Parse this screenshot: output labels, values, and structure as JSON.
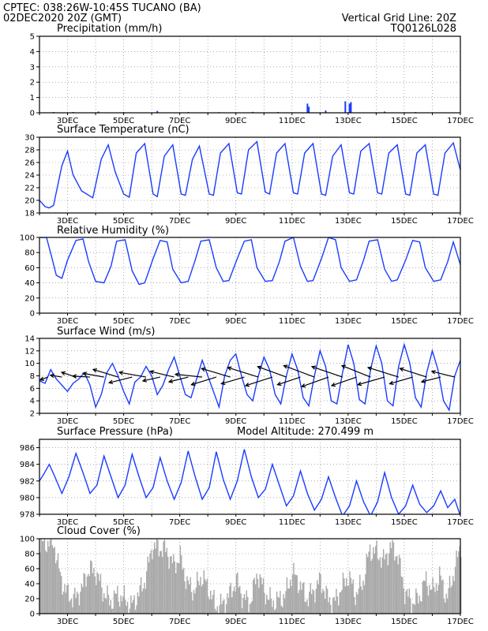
{
  "header": {
    "line1": "CPTEC:   038:26W-10:45S   TUCANO (BA)",
    "line2": "02DEC2020 20Z (GMT)",
    "right1": "Vertical Grid Line: 20Z",
    "right2": "TQ0126L028"
  },
  "colors": {
    "header": "#e07020",
    "title": "#e0207a",
    "line": "#1a3cff",
    "bar": "#a9a9a9",
    "wind": "#000000"
  },
  "xticks": [
    "3DEC",
    "5DEC",
    "7DEC",
    "9DEC",
    "11DEC",
    "13DEC",
    "15DEC",
    "17DEC"
  ],
  "chart_data": [
    {
      "type": "bar",
      "title": "Precipitation (mm/h)",
      "ylim": [
        0,
        5
      ],
      "yticks": [
        0,
        1,
        2,
        3,
        4,
        5
      ],
      "x_range_days": [
        2.0,
        17.0
      ],
      "series": [
        {
          "x": [
            2.5,
            3.2,
            4.1,
            5.0,
            6.2,
            7.3,
            8.4,
            9.6,
            10.5,
            11.55,
            11.6,
            12.2,
            12.9,
            13.05,
            13.1,
            14.3,
            15.4
          ],
          "values": [
            0.05,
            0.05,
            0.08,
            0.04,
            0.12,
            0.05,
            0.04,
            0.06,
            0.05,
            0.6,
            0.4,
            0.15,
            0.75,
            0.6,
            0.7,
            0.08,
            0.05
          ]
        }
      ]
    },
    {
      "type": "line",
      "title": "Surface Temperature (nC)",
      "ylim": [
        18,
        30
      ],
      "yticks": [
        18,
        20,
        22,
        24,
        26,
        28,
        30
      ],
      "x_range_days": [
        2.0,
        17.0
      ],
      "series": [
        {
          "x": [
            2.0,
            2.2,
            2.35,
            2.5,
            2.8,
            3.0,
            3.2,
            3.5,
            3.9,
            4.2,
            4.45,
            4.7,
            5.0,
            5.2,
            5.45,
            5.75,
            6.05,
            6.2,
            6.45,
            6.75,
            7.05,
            7.2,
            7.45,
            7.7,
            8.05,
            8.2,
            8.45,
            8.75,
            9.05,
            9.2,
            9.45,
            9.75,
            10.05,
            10.2,
            10.45,
            10.75,
            11.05,
            11.2,
            11.45,
            11.75,
            12.05,
            12.2,
            12.45,
            12.75,
            13.05,
            13.2,
            13.45,
            13.75,
            14.05,
            14.2,
            14.45,
            14.75,
            15.05,
            15.2,
            15.45,
            15.75,
            16.05,
            16.2,
            16.45,
            16.75,
            17.0
          ],
          "values": [
            20.0,
            19.0,
            18.8,
            19.2,
            25.5,
            27.8,
            24.0,
            21.5,
            20.4,
            26.5,
            28.8,
            24.5,
            21.0,
            20.5,
            27.5,
            29.0,
            21.0,
            20.6,
            27.0,
            28.8,
            21.0,
            20.8,
            26.5,
            28.6,
            21.0,
            20.8,
            27.5,
            29.0,
            21.2,
            21.0,
            28.0,
            29.3,
            21.3,
            21.0,
            27.5,
            29.0,
            21.2,
            21.0,
            27.5,
            29.0,
            21.0,
            20.8,
            27.0,
            28.8,
            21.2,
            21.0,
            27.8,
            29.0,
            21.2,
            21.0,
            27.5,
            28.8,
            21.0,
            20.8,
            27.5,
            28.8,
            21.0,
            20.8,
            27.5,
            29.1,
            24.8
          ]
        }
      ]
    },
    {
      "type": "line",
      "title": "Relative Humidity (%)",
      "ylim": [
        0,
        100
      ],
      "yticks": [
        0,
        20,
        40,
        60,
        80,
        100
      ],
      "x_range_days": [
        2.0,
        17.0
      ],
      "series": [
        {
          "x": [
            2.0,
            2.25,
            2.45,
            2.6,
            2.8,
            3.0,
            3.3,
            3.55,
            3.75,
            4.0,
            4.3,
            4.55,
            4.75,
            5.05,
            5.3,
            5.55,
            5.75,
            6.05,
            6.3,
            6.55,
            6.75,
            7.05,
            7.3,
            7.55,
            7.75,
            8.05,
            8.3,
            8.55,
            8.75,
            9.05,
            9.3,
            9.55,
            9.75,
            10.05,
            10.3,
            10.55,
            10.75,
            11.05,
            11.3,
            11.55,
            11.75,
            12.05,
            12.3,
            12.55,
            12.75,
            13.05,
            13.3,
            13.55,
            13.75,
            14.05,
            14.3,
            14.55,
            14.75,
            15.05,
            15.3,
            15.55,
            15.75,
            16.05,
            16.3,
            16.55,
            16.75,
            17.0
          ],
          "values": [
            100,
            100,
            72,
            50,
            46,
            70,
            96,
            98,
            68,
            42,
            40,
            62,
            95,
            97,
            56,
            38,
            40,
            72,
            96,
            94,
            58,
            40,
            42,
            70,
            95,
            97,
            60,
            42,
            43,
            72,
            95,
            97,
            60,
            42,
            43,
            68,
            95,
            100,
            62,
            42,
            43,
            72,
            100,
            97,
            60,
            42,
            44,
            70,
            95,
            97,
            58,
            42,
            44,
            70,
            96,
            94,
            60,
            42,
            44,
            68,
            94,
            64
          ]
        }
      ]
    },
    {
      "type": "line",
      "title": "Surface Wind (m/s)",
      "ylim": [
        2,
        14
      ],
      "yticks": [
        2,
        4,
        6,
        8,
        10,
        12,
        14
      ],
      "x_range_days": [
        2.0,
        17.0
      ],
      "series": [
        {
          "x": [
            2.0,
            2.2,
            2.4,
            2.6,
            2.8,
            3.0,
            3.2,
            3.4,
            3.6,
            3.8,
            4.0,
            4.2,
            4.4,
            4.6,
            4.8,
            5.0,
            5.2,
            5.4,
            5.6,
            5.8,
            6.0,
            6.2,
            6.4,
            6.6,
            6.8,
            7.0,
            7.2,
            7.4,
            7.6,
            7.8,
            8.0,
            8.2,
            8.4,
            8.6,
            8.8,
            9.0,
            9.2,
            9.4,
            9.6,
            9.8,
            10.0,
            10.2,
            10.4,
            10.6,
            10.8,
            11.0,
            11.2,
            11.4,
            11.6,
            11.8,
            12.0,
            12.2,
            12.4,
            12.6,
            12.8,
            13.0,
            13.2,
            13.4,
            13.6,
            13.8,
            14.0,
            14.2,
            14.4,
            14.6,
            14.8,
            15.0,
            15.2,
            15.4,
            15.6,
            15.8,
            16.0,
            16.2,
            16.4,
            16.6,
            16.8,
            17.0
          ],
          "values": [
            7.2,
            6.8,
            9.0,
            7.5,
            6.5,
            5.5,
            6.8,
            7.5,
            8.5,
            6.5,
            3.0,
            5.0,
            8.5,
            10.0,
            8.0,
            5.5,
            3.5,
            7.0,
            7.8,
            9.5,
            8.0,
            5.0,
            6.5,
            9.0,
            11.0,
            8.0,
            5.0,
            4.5,
            7.5,
            10.5,
            8.0,
            5.5,
            3.0,
            8.0,
            10.5,
            11.5,
            8.0,
            5.0,
            4.0,
            8.0,
            11.0,
            9.0,
            5.0,
            3.5,
            8.0,
            11.5,
            9.0,
            4.5,
            3.2,
            8.0,
            12.0,
            9.5,
            4.0,
            3.5,
            8.5,
            13.0,
            10.0,
            4.2,
            3.5,
            9.0,
            12.8,
            10.0,
            4.0,
            3.2,
            9.5,
            13.0,
            10.0,
            4.5,
            3.0,
            8.5,
            12.0,
            9.0,
            4.0,
            2.5,
            8.0,
            10.5
          ]
        }
      ],
      "vectors": {
        "x": [
          2.3,
          2.8,
          3.3,
          3.8,
          4.3,
          4.8,
          5.3,
          5.8,
          6.3,
          6.8,
          7.3,
          7.8,
          8.3,
          8.8,
          9.3,
          9.8,
          10.3,
          10.8,
          11.3,
          11.8,
          12.3,
          12.8,
          13.3,
          13.8,
          14.3,
          14.8,
          15.3,
          15.8,
          16.3,
          16.8
        ],
        "u": [
          -0.8,
          -1.2,
          -1.5,
          -1.8,
          -2.2,
          -2.6,
          -2.4,
          -2.8,
          -1.8,
          -2.5,
          -2.0,
          -2.8,
          -2.6,
          -3.0,
          -2.4,
          -3.2,
          -2.8,
          -3.0,
          -2.4,
          -3.2,
          -2.8,
          -3.2,
          -2.6,
          -3.0,
          -2.8,
          -3.2,
          -2.4,
          -2.8,
          -2.0,
          -2.4
        ],
        "v": [
          -0.3,
          0.2,
          0.5,
          0.1,
          0.4,
          0.8,
          -0.6,
          0.5,
          -0.4,
          0.6,
          -0.5,
          0.3,
          -0.8,
          0.9,
          -0.7,
          1.0,
          -0.9,
          1.1,
          -0.8,
          1.2,
          -1.0,
          1.1,
          -0.9,
          1.2,
          -0.8,
          1.0,
          -0.7,
          0.9,
          -0.5,
          0.6
        ]
      }
    },
    {
      "type": "line",
      "title": "Surface Pressure (hPa)",
      "annotation": "Model Altitude: 270.499  m",
      "ylim": [
        978,
        987
      ],
      "yticks": [
        978,
        980,
        982,
        984,
        986
      ],
      "x_range_days": [
        2.0,
        17.0
      ],
      "series": [
        {
          "x": [
            2.0,
            2.15,
            2.35,
            2.55,
            2.8,
            3.05,
            3.3,
            3.55,
            3.8,
            4.05,
            4.3,
            4.55,
            4.8,
            5.05,
            5.3,
            5.55,
            5.8,
            6.05,
            6.3,
            6.55,
            6.8,
            7.05,
            7.3,
            7.55,
            7.8,
            8.05,
            8.3,
            8.55,
            8.8,
            9.05,
            9.3,
            9.55,
            9.8,
            10.05,
            10.3,
            10.55,
            10.8,
            11.05,
            11.3,
            11.55,
            11.8,
            12.05,
            12.3,
            12.55,
            12.8,
            13.05,
            13.3,
            13.55,
            13.8,
            14.05,
            14.3,
            14.55,
            14.8,
            15.05,
            15.3,
            15.55,
            15.8,
            16.05,
            16.3,
            16.55,
            16.8,
            17.0
          ],
          "values": [
            982.0,
            982.8,
            984.0,
            982.5,
            980.5,
            982.5,
            985.3,
            983.0,
            980.5,
            981.5,
            985.0,
            982.5,
            980.0,
            981.5,
            985.2,
            982.5,
            980.0,
            981.2,
            984.8,
            982.0,
            979.8,
            981.8,
            985.6,
            982.5,
            979.8,
            981.2,
            985.5,
            982.2,
            979.8,
            982.0,
            985.8,
            982.5,
            980.0,
            981.0,
            984.0,
            981.5,
            979.0,
            980.2,
            983.2,
            980.5,
            978.5,
            979.8,
            982.5,
            980.0,
            977.8,
            979.0,
            982.0,
            979.5,
            977.8,
            979.5,
            983.0,
            980.0,
            978.0,
            979.0,
            981.5,
            979.2,
            978.2,
            979.0,
            980.8,
            978.8,
            979.8,
            977.8
          ]
        }
      ]
    },
    {
      "type": "bar",
      "title": "Cloud Cover (%)",
      "ylim": [
        0,
        100
      ],
      "yticks": [
        0,
        20,
        40,
        60,
        80,
        100
      ],
      "x_range_days": [
        2.0,
        17.0
      ],
      "series": [
        {
          "x": [
            2.0,
            2.25,
            2.5,
            2.75,
            3.0,
            3.25,
            3.5,
            3.75,
            4.0,
            4.25,
            4.5,
            4.75,
            5.0,
            5.25,
            5.5,
            5.75,
            6.0,
            6.25,
            6.5,
            6.75,
            7.0,
            7.25,
            7.5,
            7.75,
            8.0,
            8.25,
            8.5,
            8.75,
            9.0,
            9.25,
            9.5,
            9.75,
            10.0,
            10.25,
            10.5,
            10.75,
            11.0,
            11.25,
            11.5,
            11.75,
            12.0,
            12.25,
            12.5,
            12.75,
            13.0,
            13.25,
            13.5,
            13.75,
            14.0,
            14.25,
            14.5,
            14.75,
            15.0,
            15.25,
            15.5,
            15.75,
            16.0,
            16.25,
            16.5,
            16.75,
            17.0
          ],
          "values": [
            92,
            95,
            93,
            45,
            25,
            20,
            35,
            60,
            55,
            30,
            15,
            25,
            20,
            10,
            25,
            45,
            90,
            88,
            85,
            65,
            75,
            40,
            30,
            50,
            35,
            10,
            12,
            25,
            45,
            20,
            15,
            55,
            30,
            15,
            18,
            25,
            55,
            40,
            20,
            30,
            45,
            20,
            15,
            35,
            50,
            25,
            40,
            85,
            82,
            70,
            90,
            78,
            30,
            15,
            20,
            45,
            30,
            50,
            20,
            55,
            92
          ]
        }
      ]
    }
  ]
}
